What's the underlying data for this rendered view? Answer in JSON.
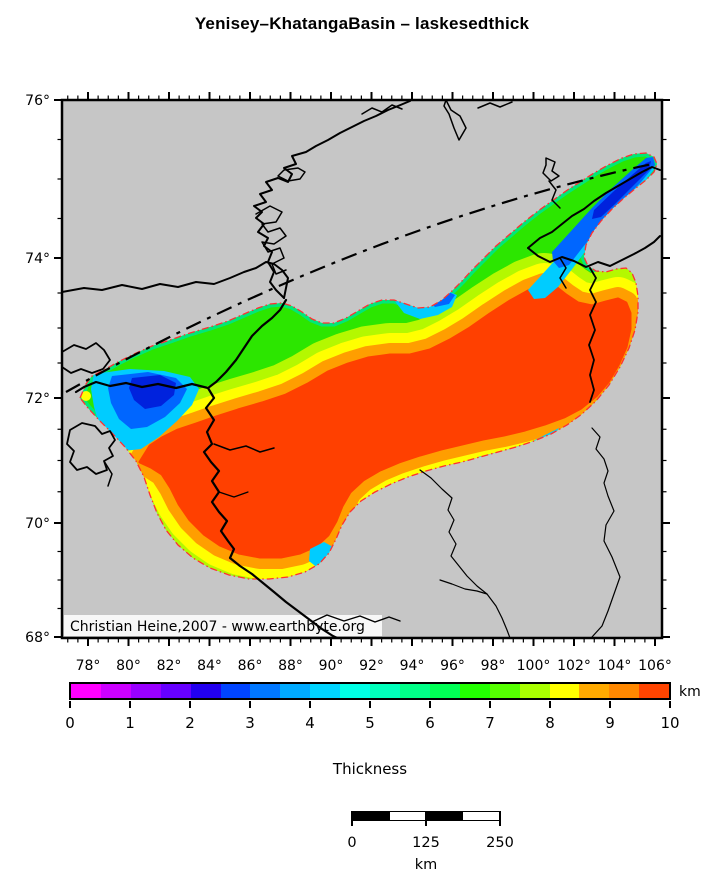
{
  "title": "Yenisey–KhatangaBasin – laskesedthick",
  "map": {
    "watermark": "Christian Heine,2007 - www.earthbyte.org",
    "land_color": "#c6c6c6",
    "basin_outline_color": "#ff3030",
    "axes": {
      "lat_labels": [
        "76°",
        "74°",
        "72°",
        "70°",
        "68°"
      ],
      "lon_labels": [
        "78°",
        "80°",
        "82°",
        "84°",
        "86°",
        "88°",
        "90°",
        "92°",
        "94°",
        "96°",
        "98°",
        "100°",
        "102°",
        "104°",
        "106°"
      ]
    }
  },
  "colorbar": {
    "title": "Thickness",
    "unit": "km",
    "tick_labels": [
      "0",
      "1",
      "2",
      "3",
      "4",
      "5",
      "6",
      "7",
      "8",
      "9",
      "10"
    ],
    "segment_colors": [
      "#ff00ff",
      "#cc00ff",
      "#9900ff",
      "#6600ff",
      "#2200f0",
      "#0044ff",
      "#0077ff",
      "#00aaff",
      "#00d4ff",
      "#00ffe6",
      "#00ffbb",
      "#00ff88",
      "#00ff55",
      "#22ff00",
      "#55ff00",
      "#aaff00",
      "#ffff00",
      "#ffaa00",
      "#ff8800",
      "#ff4400"
    ]
  },
  "scalebar": {
    "tick_labels": [
      "0",
      "125",
      "250"
    ],
    "unit": "km",
    "segments": [
      "#000000",
      "#ffffff",
      "#000000",
      "#ffffff"
    ]
  }
}
